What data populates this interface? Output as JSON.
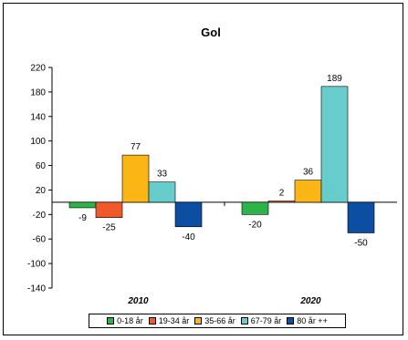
{
  "chart_data": {
    "type": "bar",
    "title": "Gol",
    "categories": [
      "2010",
      "2020"
    ],
    "series": [
      {
        "name": "0-18 år",
        "color": "#2eb34a",
        "values": [
          -9,
          -20
        ]
      },
      {
        "name": "19-34 år",
        "color": "#f05a28",
        "values": [
          -25,
          2
        ]
      },
      {
        "name": "35-66 år",
        "color": "#fbb616",
        "values": [
          77,
          36
        ]
      },
      {
        "name": "67-79 år",
        "color": "#66cccc",
        "values": [
          33,
          189
        ]
      },
      {
        "name": "80 år ++",
        "color": "#0b4ea2",
        "values": [
          -40,
          -50
        ]
      }
    ],
    "ylim": [
      -140,
      220
    ],
    "yticks": [
      220,
      180,
      140,
      100,
      60,
      20,
      -20,
      -60,
      -100,
      -140
    ],
    "xlabel": "",
    "ylabel": "",
    "grid": false,
    "legend": "bottom"
  }
}
